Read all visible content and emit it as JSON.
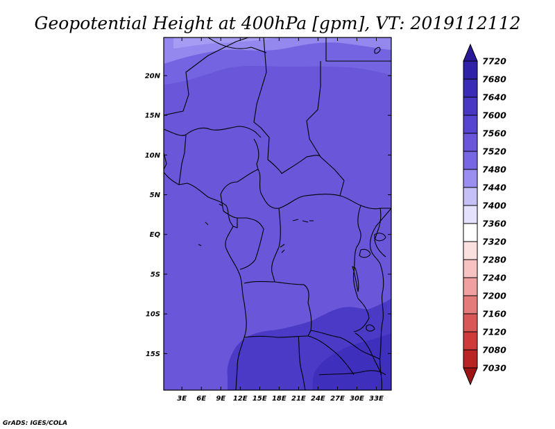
{
  "title": "Geopotential Height at 400hPa [gpm], VT: 2019112112",
  "credit": "GrADS: IGES/COLA",
  "map": {
    "lat_labels": [
      "20N",
      "15N",
      "10N",
      "5N",
      "EQ",
      "5S",
      "10S",
      "15S"
    ],
    "lon_labels": [
      "3E",
      "6E",
      "9E",
      "12E",
      "15E",
      "18E",
      "21E",
      "24E",
      "27E",
      "30E",
      "33E"
    ],
    "lat_values": [
      20,
      15,
      10,
      5,
      0,
      -5,
      -10,
      -15
    ],
    "lon_values": [
      3,
      6,
      9,
      12,
      15,
      18,
      21,
      24,
      27,
      30,
      33
    ],
    "lat_range": [
      -19.6,
      24.8
    ],
    "lon_range": [
      0.2,
      35.3
    ],
    "field_colors": {
      "7520": "#7564e2",
      "7560": "#6a56d8",
      "7600": "#4936c4",
      "7480": "#9488ef"
    }
  },
  "colorbar": {
    "levels": [
      "7720",
      "7680",
      "7640",
      "7600",
      "7560",
      "7520",
      "7480",
      "7440",
      "7400",
      "7360",
      "7320",
      "7280",
      "7240",
      "7200",
      "7160",
      "7120",
      "7080",
      "7030"
    ],
    "colors": [
      "#2a1a98",
      "#2f22a6",
      "#3a2cb4",
      "#4838c2",
      "#5645cf",
      "#6a56d8",
      "#7867e2",
      "#9a8ff0",
      "#c5c0f6",
      "#e3e1fb",
      "#ffffff",
      "#fbe0e0",
      "#f7c2c2",
      "#f0a0a0",
      "#e47b7b",
      "#d85858",
      "#cc3a3a",
      "#b92525",
      "#9e1414"
    ]
  }
}
